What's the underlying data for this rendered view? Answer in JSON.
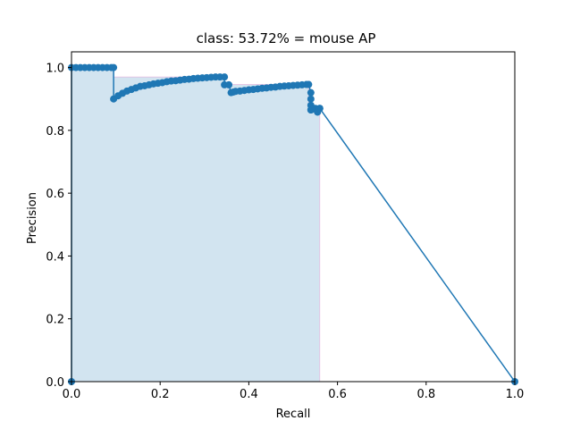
{
  "chart_data": {
    "type": "line",
    "title": "class: 53.72% = mouse AP",
    "xlabel": "Recall",
    "ylabel": "Precision",
    "xlim": [
      0,
      1
    ],
    "ylim": [
      0,
      1.05
    ],
    "xticks": [
      0.0,
      0.2,
      0.4,
      0.6,
      0.8,
      1.0
    ],
    "xtick_labels": [
      "0.0",
      "0.2",
      "0.4",
      "0.6",
      "0.8",
      "1.0"
    ],
    "yticks": [
      0.0,
      0.2,
      0.4,
      0.6,
      0.8,
      1.0
    ],
    "ytick_labels": [
      "0.0",
      "0.2",
      "0.4",
      "0.6",
      "0.8",
      "1.0"
    ],
    "grid": false,
    "colors": {
      "line": "#1f77b4",
      "fill": "#1f77b4",
      "fill_edge": "#e377c2"
    },
    "series": [
      {
        "x": [
          0,
          0,
          0.01,
          0.02,
          0.03,
          0.04,
          0.05,
          0.06,
          0.07,
          0.08,
          0.09,
          0.095,
          0.095,
          0.105,
          0.115,
          0.125,
          0.135,
          0.145,
          0.155,
          0.165,
          0.175,
          0.185,
          0.195,
          0.205,
          0.215,
          0.225,
          0.235,
          0.245,
          0.255,
          0.265,
          0.275,
          0.285,
          0.295,
          0.305,
          0.315,
          0.325,
          0.335,
          0.345,
          0.345,
          0.355,
          0.36,
          0.365,
          0.37,
          0.38,
          0.39,
          0.4,
          0.41,
          0.42,
          0.43,
          0.44,
          0.45,
          0.46,
          0.47,
          0.48,
          0.49,
          0.5,
          0.51,
          0.52,
          0.53,
          0.535,
          0.54,
          0.54,
          0.54,
          0.54,
          0.54,
          0.545,
          0.55,
          0.555,
          0.56,
          0.56,
          1.0
        ],
        "y": [
          0,
          1.0,
          1.0,
          1.0,
          1.0,
          1.0,
          1.0,
          1.0,
          1.0,
          1.0,
          1.0,
          1.0,
          0.9,
          0.91,
          0.918,
          0.925,
          0.93,
          0.935,
          0.94,
          0.942,
          0.945,
          0.948,
          0.95,
          0.952,
          0.955,
          0.957,
          0.958,
          0.96,
          0.962,
          0.963,
          0.965,
          0.966,
          0.967,
          0.968,
          0.969,
          0.97,
          0.97,
          0.97,
          0.945,
          0.945,
          0.92,
          0.922,
          0.924,
          0.925,
          0.927,
          0.929,
          0.93,
          0.932,
          0.934,
          0.935,
          0.937,
          0.938,
          0.94,
          0.941,
          0.942,
          0.943,
          0.944,
          0.945,
          0.946,
          0.946,
          0.92,
          0.9,
          0.88,
          0.865,
          0.865,
          0.868,
          0.87,
          0.858,
          0.87,
          0.87,
          0.0
        ]
      }
    ],
    "ap_area": {
      "x": [
        0,
        0.095,
        0.095,
        0.345,
        0.345,
        0.535,
        0.535,
        0.56,
        0.56
      ],
      "y": [
        1.0,
        1.0,
        0.97,
        0.97,
        0.946,
        0.946,
        0.87,
        0.87,
        0.0
      ]
    }
  }
}
